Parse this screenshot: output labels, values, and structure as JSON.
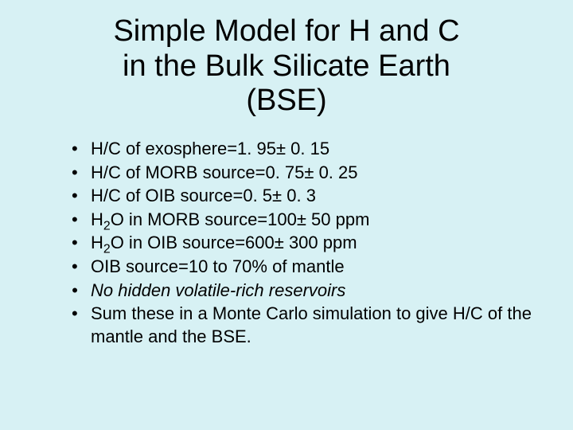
{
  "background_color": "#d7f1f4",
  "text_color": "#000000",
  "title": {
    "lines": [
      "Simple Model for H and C",
      "in the Bulk Silicate Earth",
      "(BSE)"
    ],
    "fontsize": 38,
    "font_weight": 400,
    "align": "center"
  },
  "bullets": {
    "fontsize": 22,
    "marker": "•",
    "items": [
      {
        "html": "H/C of exosphere=1. 95± 0. 15",
        "italic": false
      },
      {
        "html": "H/C of MORB source=0. 75± 0. 25",
        "italic": false
      },
      {
        "html": "H/C of OIB source=0. 5± 0. 3",
        "italic": false
      },
      {
        "html": "H<sub>2</sub>O in MORB source=100± 50 ppm",
        "italic": false
      },
      {
        "html": "H<sub>2</sub>O in OIB source=600± 300 ppm",
        "italic": false
      },
      {
        "html": "OIB source=10 to 70% of mantle",
        "italic": false
      },
      {
        "html": "No hidden volatile-rich reservoirs",
        "italic": true
      },
      {
        "html": "Sum these in a Monte Carlo simulation to give H/C of the mantle and the BSE.",
        "italic": false
      }
    ]
  }
}
